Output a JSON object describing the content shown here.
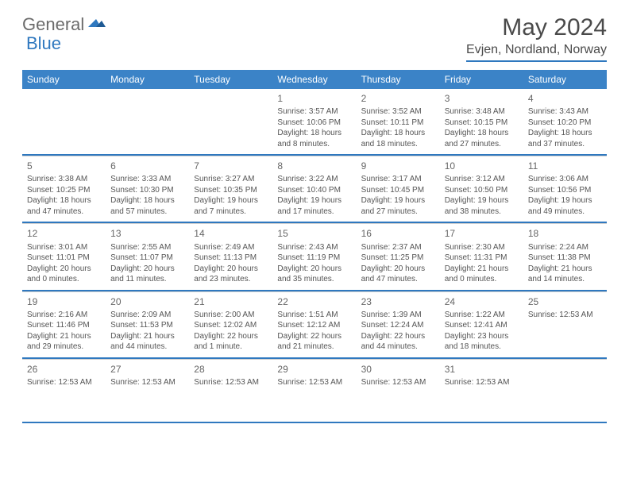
{
  "brand": {
    "general": "General",
    "blue": "Blue"
  },
  "title": "May 2024",
  "location": "Evjen, Nordland, Norway",
  "header_color": "#3b83c7",
  "accent_color": "#2f78bf",
  "day_names": [
    "Sunday",
    "Monday",
    "Tuesday",
    "Wednesday",
    "Thursday",
    "Friday",
    "Saturday"
  ],
  "weeks": [
    [
      {
        "num": "",
        "lines": []
      },
      {
        "num": "",
        "lines": []
      },
      {
        "num": "",
        "lines": []
      },
      {
        "num": "1",
        "lines": [
          "Sunrise: 3:57 AM",
          "Sunset: 10:06 PM",
          "Daylight: 18 hours and 8 minutes."
        ]
      },
      {
        "num": "2",
        "lines": [
          "Sunrise: 3:52 AM",
          "Sunset: 10:11 PM",
          "Daylight: 18 hours and 18 minutes."
        ]
      },
      {
        "num": "3",
        "lines": [
          "Sunrise: 3:48 AM",
          "Sunset: 10:15 PM",
          "Daylight: 18 hours and 27 minutes."
        ]
      },
      {
        "num": "4",
        "lines": [
          "Sunrise: 3:43 AM",
          "Sunset: 10:20 PM",
          "Daylight: 18 hours and 37 minutes."
        ]
      }
    ],
    [
      {
        "num": "5",
        "lines": [
          "Sunrise: 3:38 AM",
          "Sunset: 10:25 PM",
          "Daylight: 18 hours and 47 minutes."
        ]
      },
      {
        "num": "6",
        "lines": [
          "Sunrise: 3:33 AM",
          "Sunset: 10:30 PM",
          "Daylight: 18 hours and 57 minutes."
        ]
      },
      {
        "num": "7",
        "lines": [
          "Sunrise: 3:27 AM",
          "Sunset: 10:35 PM",
          "Daylight: 19 hours and 7 minutes."
        ]
      },
      {
        "num": "8",
        "lines": [
          "Sunrise: 3:22 AM",
          "Sunset: 10:40 PM",
          "Daylight: 19 hours and 17 minutes."
        ]
      },
      {
        "num": "9",
        "lines": [
          "Sunrise: 3:17 AM",
          "Sunset: 10:45 PM",
          "Daylight: 19 hours and 27 minutes."
        ]
      },
      {
        "num": "10",
        "lines": [
          "Sunrise: 3:12 AM",
          "Sunset: 10:50 PM",
          "Daylight: 19 hours and 38 minutes."
        ]
      },
      {
        "num": "11",
        "lines": [
          "Sunrise: 3:06 AM",
          "Sunset: 10:56 PM",
          "Daylight: 19 hours and 49 minutes."
        ]
      }
    ],
    [
      {
        "num": "12",
        "lines": [
          "Sunrise: 3:01 AM",
          "Sunset: 11:01 PM",
          "Daylight: 20 hours and 0 minutes."
        ]
      },
      {
        "num": "13",
        "lines": [
          "Sunrise: 2:55 AM",
          "Sunset: 11:07 PM",
          "Daylight: 20 hours and 11 minutes."
        ]
      },
      {
        "num": "14",
        "lines": [
          "Sunrise: 2:49 AM",
          "Sunset: 11:13 PM",
          "Daylight: 20 hours and 23 minutes."
        ]
      },
      {
        "num": "15",
        "lines": [
          "Sunrise: 2:43 AM",
          "Sunset: 11:19 PM",
          "Daylight: 20 hours and 35 minutes."
        ]
      },
      {
        "num": "16",
        "lines": [
          "Sunrise: 2:37 AM",
          "Sunset: 11:25 PM",
          "Daylight: 20 hours and 47 minutes."
        ]
      },
      {
        "num": "17",
        "lines": [
          "Sunrise: 2:30 AM",
          "Sunset: 11:31 PM",
          "Daylight: 21 hours and 0 minutes."
        ]
      },
      {
        "num": "18",
        "lines": [
          "Sunrise: 2:24 AM",
          "Sunset: 11:38 PM",
          "Daylight: 21 hours and 14 minutes."
        ]
      }
    ],
    [
      {
        "num": "19",
        "lines": [
          "Sunrise: 2:16 AM",
          "Sunset: 11:46 PM",
          "Daylight: 21 hours and 29 minutes."
        ]
      },
      {
        "num": "20",
        "lines": [
          "Sunrise: 2:09 AM",
          "Sunset: 11:53 PM",
          "Daylight: 21 hours and 44 minutes."
        ]
      },
      {
        "num": "21",
        "lines": [
          "Sunrise: 2:00 AM",
          "Sunset: 12:02 AM",
          "Daylight: 22 hours and 1 minute."
        ]
      },
      {
        "num": "22",
        "lines": [
          "Sunrise: 1:51 AM",
          "Sunset: 12:12 AM",
          "Daylight: 22 hours and 21 minutes."
        ]
      },
      {
        "num": "23",
        "lines": [
          "Sunrise: 1:39 AM",
          "Sunset: 12:24 AM",
          "Daylight: 22 hours and 44 minutes."
        ]
      },
      {
        "num": "24",
        "lines": [
          "Sunrise: 1:22 AM",
          "Sunset: 12:41 AM",
          "Daylight: 23 hours and 18 minutes."
        ]
      },
      {
        "num": "25",
        "lines": [
          "Sunrise: 12:53 AM"
        ]
      }
    ],
    [
      {
        "num": "26",
        "lines": [
          "Sunrise: 12:53 AM"
        ]
      },
      {
        "num": "27",
        "lines": [
          "Sunrise: 12:53 AM"
        ]
      },
      {
        "num": "28",
        "lines": [
          "Sunrise: 12:53 AM"
        ]
      },
      {
        "num": "29",
        "lines": [
          "Sunrise: 12:53 AM"
        ]
      },
      {
        "num": "30",
        "lines": [
          "Sunrise: 12:53 AM"
        ]
      },
      {
        "num": "31",
        "lines": [
          "Sunrise: 12:53 AM"
        ]
      },
      {
        "num": "",
        "lines": []
      }
    ]
  ]
}
